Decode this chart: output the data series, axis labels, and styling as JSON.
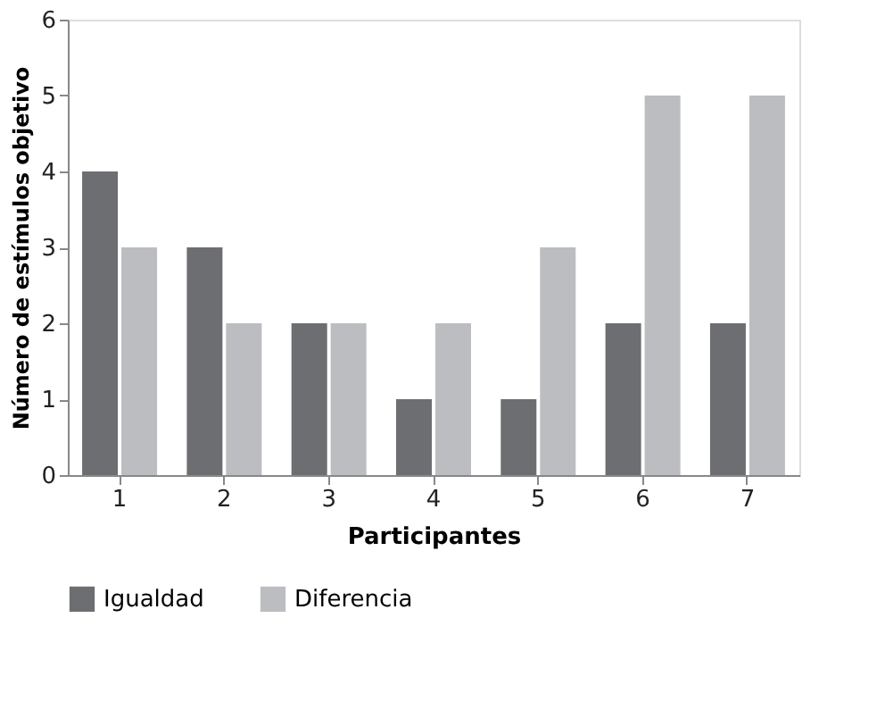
{
  "chart_data": {
    "type": "bar",
    "xlabel": "Participantes",
    "ylabel": "Número de estímulos objetivo",
    "categories": [
      "1",
      "2",
      "3",
      "4",
      "5",
      "6",
      "7"
    ],
    "series": [
      {
        "name": "Igualdad",
        "color": "#6d6e71",
        "values": [
          4,
          3,
          2,
          1,
          1,
          2,
          2
        ]
      },
      {
        "name": "Diferencia",
        "color": "#bcbdc0",
        "values": [
          3,
          2,
          2,
          2,
          3,
          5,
          5
        ]
      }
    ],
    "ylim": [
      0,
      6
    ],
    "yticks": [
      0,
      1,
      2,
      3,
      4,
      5,
      6
    ],
    "grid": false,
    "legend": "bottom"
  }
}
